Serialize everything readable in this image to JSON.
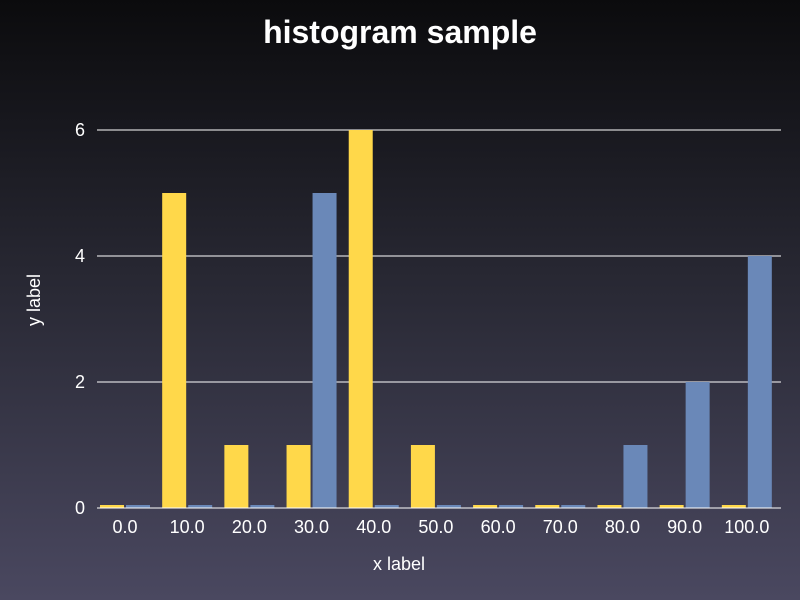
{
  "chart_data": {
    "type": "bar",
    "title": "histogram sample",
    "xlabel": "x label",
    "ylabel": "y label",
    "categories": [
      "0.0",
      "10.0",
      "20.0",
      "30.0",
      "40.0",
      "50.0",
      "60.0",
      "70.0",
      "80.0",
      "90.0",
      "100.0"
    ],
    "series": [
      {
        "values": [
          0,
          5,
          1,
          1,
          6,
          1,
          0,
          0,
          0,
          0,
          0
        ],
        "color": "#ffd84a"
      },
      {
        "values": [
          0,
          0,
          0,
          5,
          0,
          0,
          0,
          0,
          1,
          2,
          4
        ],
        "color": "#6a88b8"
      }
    ],
    "ylim": [
      0,
      6
    ],
    "yticks": [
      0,
      2,
      4,
      6
    ],
    "grid": true,
    "legend": "none"
  }
}
